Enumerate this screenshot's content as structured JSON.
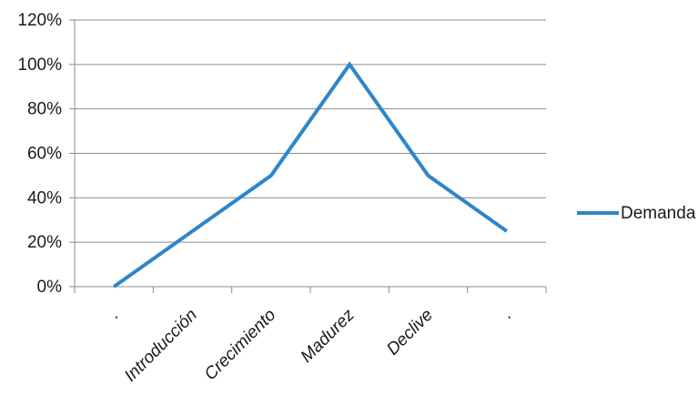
{
  "chart_data": {
    "type": "line",
    "title": "",
    "xlabel": "",
    "ylabel": "",
    "categories": [
      ".",
      "Introducción",
      "Crecimiento",
      "Madurez",
      "Declive",
      "."
    ],
    "x": [
      0,
      1,
      2,
      3,
      4,
      5
    ],
    "y_ticks": [
      "0%",
      "20%",
      "40%",
      "60%",
      "80%",
      "100%",
      "120%"
    ],
    "ylim": [
      0,
      120
    ],
    "grid": true,
    "legend_position": "right",
    "series": [
      {
        "name": "Demanda",
        "color": "#2e86c8",
        "x": [
          0,
          2,
          3,
          4,
          5
        ],
        "values": [
          0,
          50,
          100,
          50,
          25
        ]
      }
    ]
  }
}
